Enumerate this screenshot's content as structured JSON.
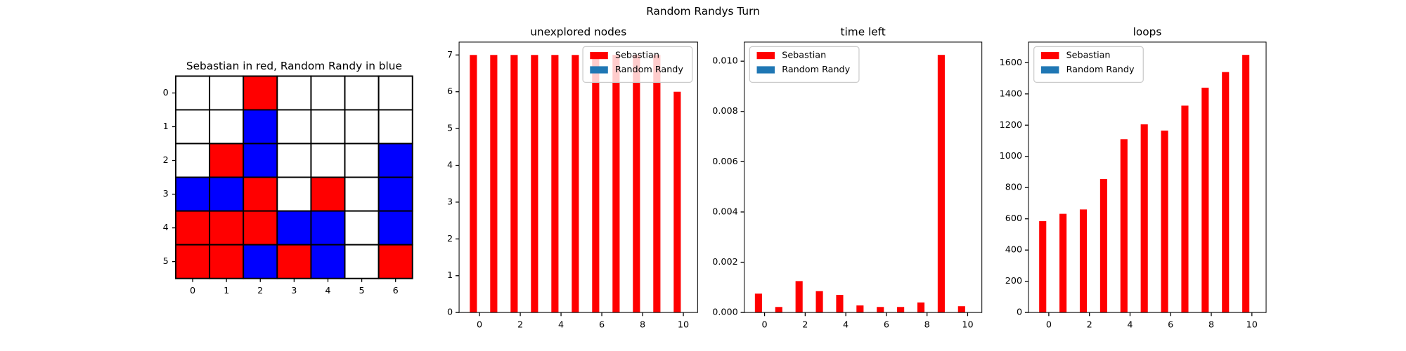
{
  "title": "Random Randys Turn",
  "chart_data": [
    {
      "type": "grid",
      "title": "Sebastian in red, Random Randy in blue",
      "cells": [
        [
          0,
          0,
          1,
          0,
          0,
          0,
          0
        ],
        [
          0,
          0,
          2,
          0,
          0,
          0,
          0
        ],
        [
          0,
          1,
          2,
          0,
          0,
          0,
          2
        ],
        [
          2,
          2,
          1,
          0,
          1,
          0,
          2
        ],
        [
          1,
          1,
          1,
          2,
          2,
          0,
          2
        ],
        [
          1,
          1,
          2,
          1,
          2,
          0,
          1
        ]
      ],
      "colors": [
        "#ffffff",
        "#ff0000",
        "#0000ff"
      ],
      "xticks": [
        0,
        1,
        2,
        3,
        4,
        5,
        6
      ],
      "yticks": [
        0,
        1,
        2,
        3,
        4,
        5
      ]
    },
    {
      "type": "bar",
      "title": "unexplored nodes",
      "x": [
        0,
        1,
        2,
        3,
        4,
        5,
        6,
        7,
        8,
        9,
        10
      ],
      "series": [
        {
          "name": "Sebastian",
          "color": "#ff0000",
          "values": [
            7,
            7,
            7,
            7,
            7,
            7,
            7,
            7,
            7,
            7,
            6
          ]
        },
        {
          "name": "Random Randy",
          "color": "#1f77b4"
        }
      ],
      "xlim": [
        -1,
        10.7
      ],
      "ylim": [
        0,
        7.35
      ],
      "xticks": [
        0,
        2,
        4,
        6,
        8,
        10
      ],
      "yticks": [
        0,
        1,
        2,
        3,
        4,
        5,
        6,
        7
      ],
      "legend": "upper right"
    },
    {
      "type": "bar",
      "title": "time left",
      "x": [
        0,
        1,
        2,
        3,
        4,
        5,
        6,
        7,
        8,
        9,
        10
      ],
      "series": [
        {
          "name": "Sebastian",
          "color": "#ff0000",
          "values": [
            0.00075,
            0.00022,
            0.00125,
            0.00085,
            0.0007,
            0.00028,
            0.00022,
            0.00022,
            0.0004,
            0.01025,
            0.00025
          ]
        },
        {
          "name": "Random Randy",
          "color": "#1f77b4"
        }
      ],
      "xlim": [
        -1,
        10.7
      ],
      "ylim": [
        0,
        0.01076
      ],
      "xticks": [
        0,
        2,
        4,
        6,
        8,
        10
      ],
      "yticks": [
        {
          "value": 0,
          "label": "0.000"
        },
        {
          "value": 0.002,
          "label": "0.002"
        },
        {
          "value": 0.004,
          "label": "0.004"
        },
        {
          "value": 0.006,
          "label": "0.006"
        },
        {
          "value": 0.008,
          "label": "0.008"
        },
        {
          "value": 0.01,
          "label": "0.010"
        }
      ],
      "legend": "upper left"
    },
    {
      "type": "bar",
      "title": "loops",
      "x": [
        0,
        1,
        2,
        3,
        4,
        5,
        6,
        7,
        8,
        9,
        10
      ],
      "series": [
        {
          "name": "Sebastian",
          "color": "#ff0000",
          "values": [
            585,
            632,
            660,
            855,
            1110,
            1205,
            1165,
            1325,
            1440,
            1540,
            1650
          ]
        },
        {
          "name": "Random Randy",
          "color": "#1f77b4"
        }
      ],
      "xlim": [
        -1,
        10.7
      ],
      "ylim": [
        0,
        1732
      ],
      "xticks": [
        0,
        2,
        4,
        6,
        8,
        10
      ],
      "yticks": [
        0,
        200,
        400,
        600,
        800,
        1000,
        1200,
        1400,
        1600
      ],
      "legend": "upper left"
    }
  ]
}
